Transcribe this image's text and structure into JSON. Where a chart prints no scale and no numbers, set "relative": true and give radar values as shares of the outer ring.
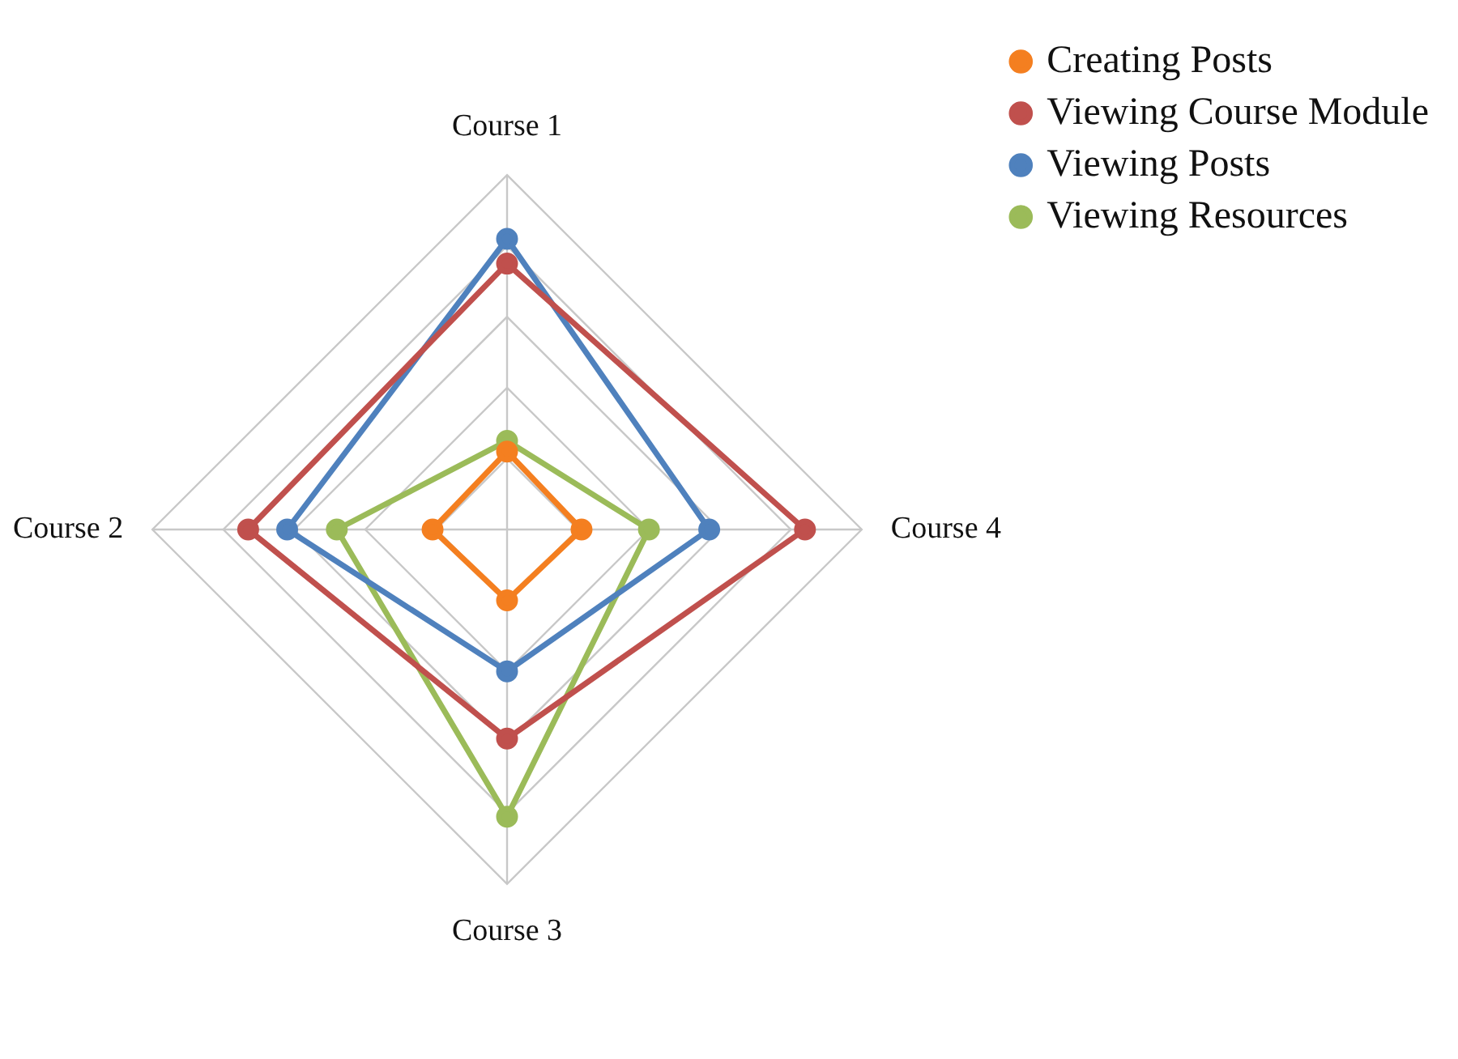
{
  "chart_data": {
    "type": "radar",
    "relative": true,
    "categories": [
      "Course 1",
      "Course 4",
      "Course 3",
      "Course 2"
    ],
    "series": [
      {
        "name": "Creating Posts",
        "color": "#f47f20",
        "values": [
          0.22,
          0.21,
          0.2,
          0.21
        ]
      },
      {
        "name": "Viewing Course Module",
        "color": "#c0504d",
        "values": [
          0.75,
          0.84,
          0.59,
          0.73
        ]
      },
      {
        "name": "Viewing Posts",
        "color": "#4f81bd",
        "values": [
          0.82,
          0.57,
          0.4,
          0.62
        ]
      },
      {
        "name": "Viewing Resources",
        "color": "#9bbb59",
        "values": [
          0.25,
          0.4,
          0.81,
          0.48
        ]
      }
    ],
    "legend": "top right",
    "marker": "circle",
    "grid": true
  }
}
